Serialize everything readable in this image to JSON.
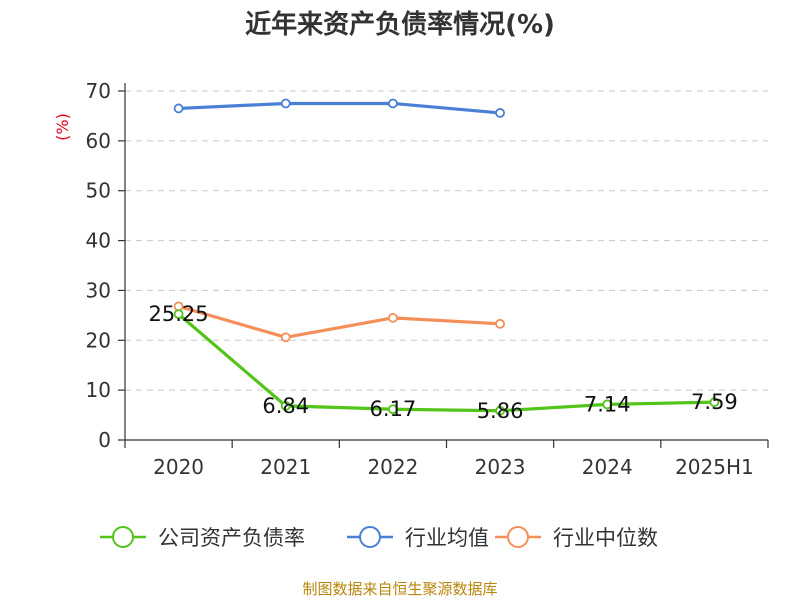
{
  "chart_data": {
    "type": "line",
    "title": "近年来资产负债率情况(%)",
    "ylabel": "(%)",
    "ylim": [
      0,
      70
    ],
    "yticks": [
      0,
      10,
      20,
      30,
      40,
      50,
      60,
      70
    ],
    "categories": [
      "2020",
      "2021",
      "2022",
      "2023",
      "2024",
      "2025H1"
    ],
    "grid": true,
    "legend_position": "bottom",
    "series": [
      {
        "name": "公司资产负债率",
        "color": "#52c41a",
        "values": [
          25.25,
          6.84,
          6.17,
          5.86,
          7.14,
          7.59
        ],
        "labels": [
          "25.25",
          "6.84",
          "6.17",
          "5.86",
          "7.14",
          "7.59"
        ]
      },
      {
        "name": "行业均值",
        "color": "#4a7fd6",
        "values": [
          66.5,
          67.5,
          67.5,
          65.6,
          null,
          null
        ]
      },
      {
        "name": "行业中位数",
        "color": "#f58f5a",
        "values": [
          26.8,
          20.6,
          24.5,
          23.3,
          null,
          null
        ]
      }
    ]
  },
  "source": "制图数据来自恒生聚源数据库"
}
